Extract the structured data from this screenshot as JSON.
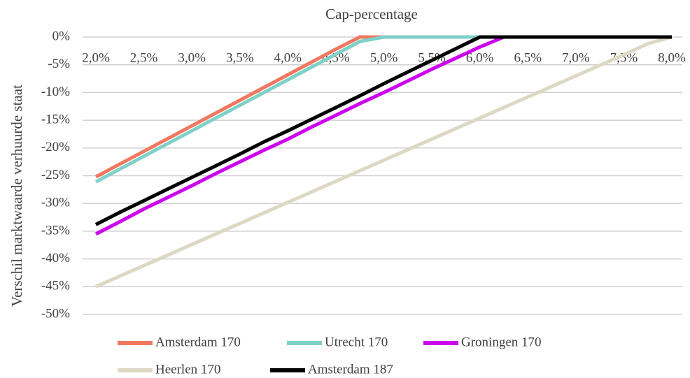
{
  "chart_data": {
    "type": "line",
    "title": "Cap-percentage",
    "y_label": "Verschil marktwaarde verhuurde staat",
    "x": [
      2.0,
      2.25,
      2.5,
      2.75,
      3.0,
      3.25,
      3.5,
      3.75,
      4.0,
      4.25,
      4.5,
      4.75,
      5.0,
      5.25,
      5.5,
      5.75,
      6.0,
      6.25,
      6.5,
      6.75,
      7.0,
      7.25,
      7.5,
      7.75,
      8.0
    ],
    "xlim": [
      2,
      8
    ],
    "xticks": [
      {
        "value": 2.0,
        "label": "2,0%"
      },
      {
        "value": 2.5,
        "label": "2,5%"
      },
      {
        "value": 3.0,
        "label": "3,0%"
      },
      {
        "value": 3.5,
        "label": "3,5%"
      },
      {
        "value": 4.0,
        "label": "4,0%"
      },
      {
        "value": 4.5,
        "label": "4,5%"
      },
      {
        "value": 5.0,
        "label": "5,0%"
      },
      {
        "value": 5.5,
        "label": "5,5%"
      },
      {
        "value": 6.0,
        "label": "6,0%"
      },
      {
        "value": 6.5,
        "label": "6,5%"
      },
      {
        "value": 7.0,
        "label": "7,0%"
      },
      {
        "value": 7.5,
        "label": "7,5%"
      },
      {
        "value": 8.0,
        "label": "8,0%"
      }
    ],
    "ylim": [
      -50,
      0
    ],
    "yticks": [
      {
        "value": 0,
        "label": "0%"
      },
      {
        "value": -5,
        "label": "-5%"
      },
      {
        "value": -10,
        "label": "-10%"
      },
      {
        "value": -15,
        "label": "-15%"
      },
      {
        "value": -20,
        "label": "-20%"
      },
      {
        "value": -25,
        "label": "-25%"
      },
      {
        "value": -30,
        "label": "-30%"
      },
      {
        "value": -35,
        "label": "-35%"
      },
      {
        "value": -40,
        "label": "-40%"
      },
      {
        "value": -45,
        "label": "-45%"
      },
      {
        "value": -50,
        "label": "-50%"
      }
    ],
    "grid": true,
    "legend": "bottom",
    "series": [
      {
        "name": "Amsterdam 170",
        "color": "#f07860",
        "values": [
          -25.2,
          -22.9,
          -20.6,
          -18.3,
          -16.0,
          -13.7,
          -11.4,
          -9.1,
          -6.8,
          -4.5,
          -2.2,
          0,
          0,
          0,
          0,
          0,
          0,
          0,
          0,
          0,
          0,
          0,
          0,
          0,
          0
        ]
      },
      {
        "name": "Utrecht 170",
        "color": "#7fd1c8",
        "values": [
          -26.1,
          -23.8,
          -21.5,
          -19.2,
          -16.9,
          -14.6,
          -12.3,
          -10.0,
          -7.7,
          -5.4,
          -3.1,
          -0.8,
          0,
          0,
          0,
          0,
          0,
          0,
          0,
          0,
          0,
          0,
          0,
          0,
          0
        ]
      },
      {
        "name": "Groningen 170",
        "color": "#cc00ee",
        "values": [
          -35.5,
          -33.3,
          -31.0,
          -28.9,
          -26.8,
          -24.6,
          -22.5,
          -20.4,
          -18.4,
          -16.2,
          -14.1,
          -12.0,
          -10.0,
          -7.9,
          -5.8,
          -3.8,
          -1.8,
          0,
          0,
          0,
          0,
          0,
          0,
          0,
          0
        ]
      },
      {
        "name": "Heerlen 170",
        "color": "#ddd8c4",
        "values": [
          -45.0,
          -43.1,
          -41.2,
          -39.3,
          -37.4,
          -35.5,
          -33.6,
          -31.7,
          -29.8,
          -27.9,
          -26.0,
          -24.1,
          -22.2,
          -20.3,
          -18.4,
          -16.5,
          -14.6,
          -12.7,
          -10.8,
          -8.9,
          -7.0,
          -5.1,
          -3.2,
          -1.2,
          0
        ]
      },
      {
        "name": "Amsterdam 187",
        "color": "#000000",
        "values": [
          -33.8,
          -31.6,
          -29.5,
          -27.4,
          -25.3,
          -23.2,
          -21.1,
          -18.9,
          -16.9,
          -14.8,
          -12.7,
          -10.6,
          -8.4,
          -6.3,
          -4.2,
          -2.1,
          0,
          0,
          0,
          0,
          0,
          0,
          0,
          0,
          0
        ]
      }
    ]
  }
}
